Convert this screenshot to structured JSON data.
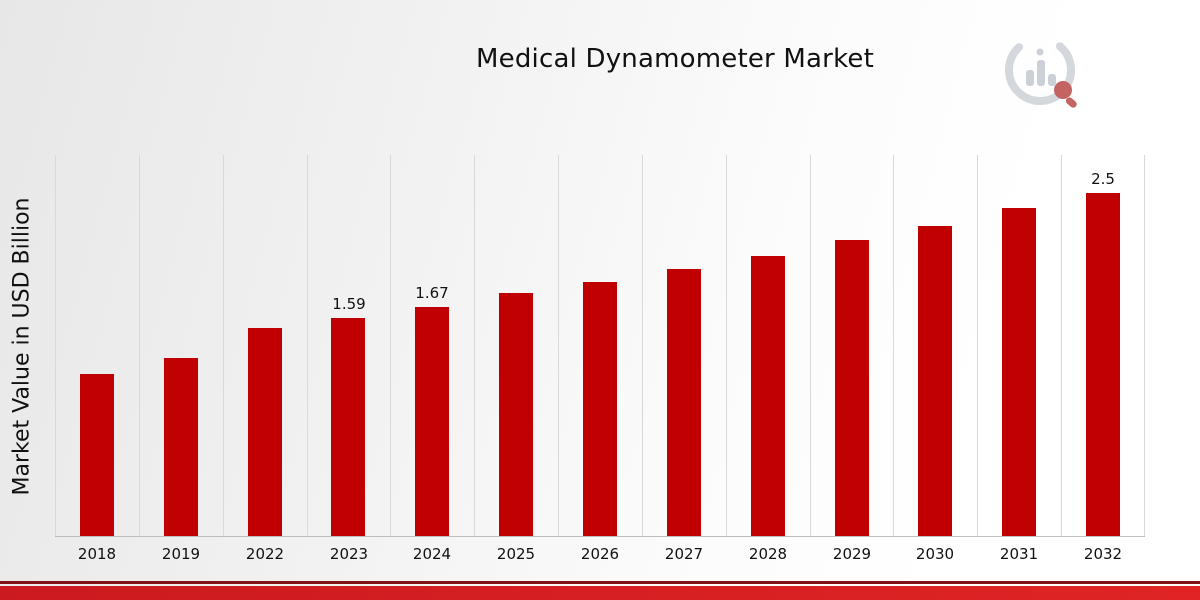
{
  "title": "Medical Dynamometer Market",
  "ylabel": "Market Value in USD Billion",
  "colors": {
    "bar": "#C00000",
    "gridline": "#D9D9D9",
    "axis": "#BDBDBD",
    "footer_dark": "#7E1416",
    "footer_red": "#CB1A20",
    "footer_red2": "#E02424"
  },
  "logo": {
    "name": "market-research-logo"
  },
  "chart_data": {
    "type": "bar",
    "title": "Medical Dynamometer Market",
    "xlabel": "",
    "ylabel": "Market Value in USD Billion",
    "categories": [
      "2018",
      "2019",
      "2022",
      "2023",
      "2024",
      "2025",
      "2026",
      "2027",
      "2028",
      "2029",
      "2030",
      "2031",
      "2032"
    ],
    "values": [
      1.18,
      1.3,
      1.52,
      1.59,
      1.67,
      1.77,
      1.85,
      1.95,
      2.04,
      2.16,
      2.26,
      2.39,
      2.5
    ],
    "point_labels": [
      "",
      "",
      "",
      "1.59",
      "1.67",
      "",
      "",
      "",
      "",
      "",
      "",
      "",
      "2.5"
    ],
    "ylim": [
      0,
      2.78
    ],
    "grid": "vertical",
    "legend": "none",
    "bar_color": "#C00000"
  }
}
